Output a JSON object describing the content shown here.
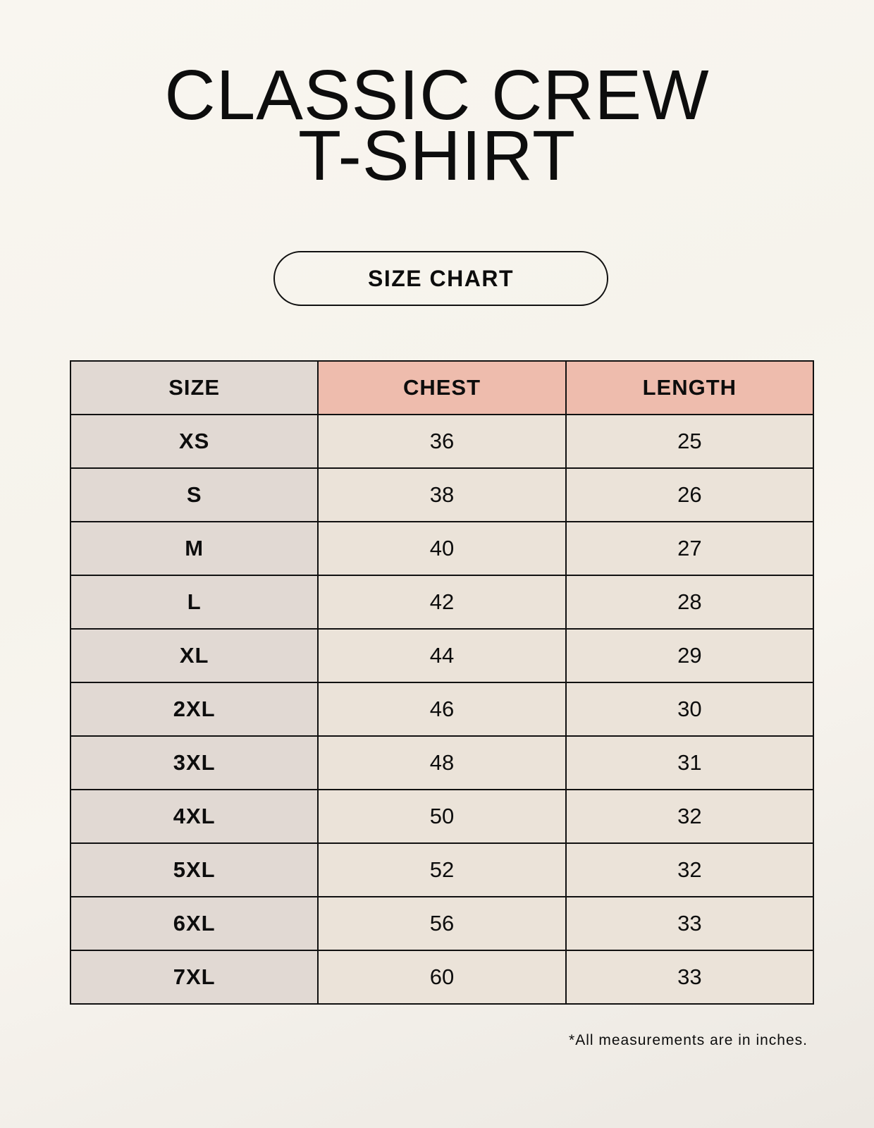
{
  "title": {
    "line1": "CLASSIC CREW",
    "line2": "T-SHIRT"
  },
  "badge": "SIZE CHART",
  "table": {
    "headers": [
      "SIZE",
      "CHEST",
      "LENGTH"
    ],
    "rows": [
      [
        "XS",
        "36",
        "25"
      ],
      [
        "S",
        "38",
        "26"
      ],
      [
        "M",
        "40",
        "27"
      ],
      [
        "L",
        "42",
        "28"
      ],
      [
        "XL",
        "44",
        "29"
      ],
      [
        "2XL",
        "46",
        "30"
      ],
      [
        "3XL",
        "48",
        "31"
      ],
      [
        "4XL",
        "50",
        "32"
      ],
      [
        "5XL",
        "52",
        "32"
      ],
      [
        "6XL",
        "56",
        "33"
      ],
      [
        "7XL",
        "60",
        "33"
      ]
    ]
  },
  "note": "*All measurements are in inches.",
  "colors": {
    "header_accent": "#eebcad",
    "size_column": "#e1d9d3",
    "value_cells": "#ebe3d9"
  }
}
